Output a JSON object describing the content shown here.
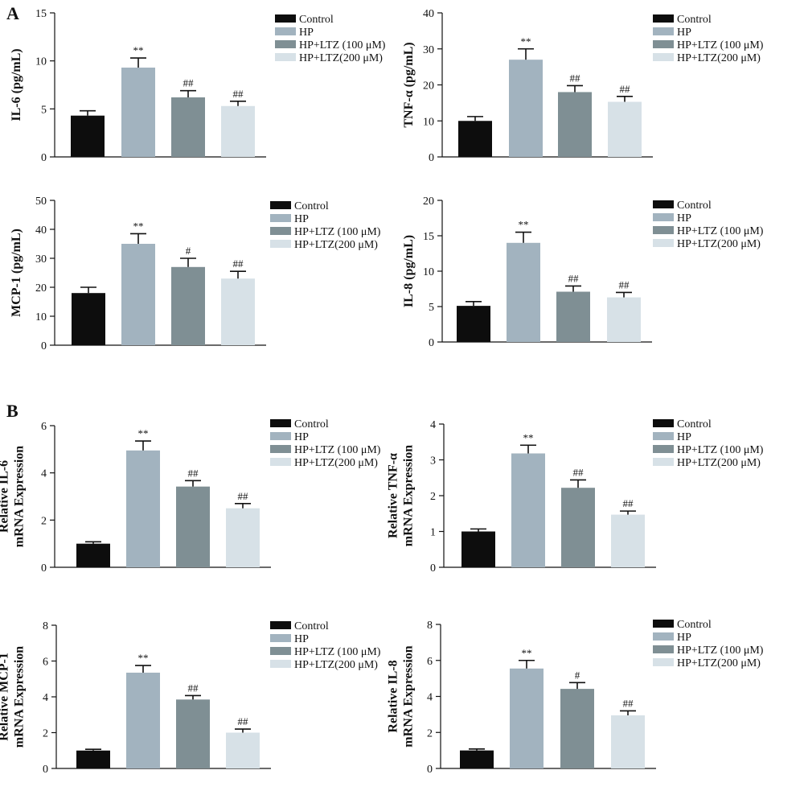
{
  "panel_letters": [
    "A",
    "B"
  ],
  "legend": [
    "Control",
    "HP",
    "HP+LTZ (100 μM)",
    "HP+LTZ(200 μM)"
  ],
  "colors": [
    "#0d0d0d",
    "#a2b3bf",
    "#7f8f94",
    "#d7e1e7"
  ],
  "chart_data": [
    {
      "type": "bar",
      "panel": "A",
      "ylabel": [
        "IL-6 (pg/mL)"
      ],
      "categories": [
        "Control",
        "HP",
        "HP+LTZ (100 μM)",
        "HP+LTZ(200 μM)"
      ],
      "values": [
        4.3,
        9.3,
        6.2,
        5.3
      ],
      "errors": [
        0.5,
        1.0,
        0.7,
        0.5
      ],
      "significance": [
        "",
        "**",
        "##",
        "##"
      ],
      "ylim": [
        0,
        15
      ],
      "yticks": [
        0,
        5,
        10,
        15
      ],
      "grid": false,
      "legend_position": "right"
    },
    {
      "type": "bar",
      "panel": "A",
      "ylabel": [
        "TNF-α (pg/mL)"
      ],
      "categories": [
        "Control",
        "HP",
        "HP+LTZ (100 μM)",
        "HP+LTZ(200 μM)"
      ],
      "values": [
        10,
        27,
        18,
        15.3
      ],
      "errors": [
        1.2,
        3.0,
        1.8,
        1.5
      ],
      "significance": [
        "",
        "**",
        "##",
        "##"
      ],
      "ylim": [
        0,
        40
      ],
      "yticks": [
        0,
        10,
        20,
        30,
        40
      ],
      "grid": false,
      "legend_position": "right"
    },
    {
      "type": "bar",
      "panel": "A",
      "ylabel": [
        "MCP-1 (pg/mL)"
      ],
      "categories": [
        "Control",
        "HP",
        "HP+LTZ (100 μM)",
        "HP+LTZ(200 μM)"
      ],
      "values": [
        18,
        35,
        27,
        23
      ],
      "errors": [
        2.0,
        3.5,
        3.0,
        2.5
      ],
      "significance": [
        "",
        "**",
        "#",
        "##"
      ],
      "ylim": [
        0,
        50
      ],
      "yticks": [
        0,
        10,
        20,
        30,
        40,
        50
      ],
      "grid": false,
      "legend_position": "right"
    },
    {
      "type": "bar",
      "panel": "A",
      "ylabel": [
        "IL-8 (pg/mL)"
      ],
      "categories": [
        "Control",
        "HP",
        "HP+LTZ (100 μM)",
        "HP+LTZ(200 μM)"
      ],
      "values": [
        5.1,
        14,
        7.1,
        6.3
      ],
      "errors": [
        0.6,
        1.5,
        0.8,
        0.7
      ],
      "significance": [
        "",
        "**",
        "##",
        "##"
      ],
      "ylim": [
        0,
        20
      ],
      "yticks": [
        0,
        5,
        10,
        15,
        20
      ],
      "grid": false,
      "legend_position": "right"
    },
    {
      "type": "bar",
      "panel": "B",
      "ylabel": [
        "Relative IL-6",
        "mRNA Expression"
      ],
      "categories": [
        "Control",
        "HP",
        "HP+LTZ (100 μM)",
        "HP+LTZ(200 μM)"
      ],
      "values": [
        1.0,
        4.95,
        3.42,
        2.5
      ],
      "errors": [
        0.08,
        0.4,
        0.25,
        0.2
      ],
      "significance": [
        "",
        "**",
        "##",
        "##"
      ],
      "ylim": [
        0,
        6
      ],
      "yticks": [
        0,
        2,
        4,
        6
      ],
      "grid": false,
      "legend_position": "right"
    },
    {
      "type": "bar",
      "panel": "B",
      "ylabel": [
        "Relative TNF-α",
        "mRNA Expression"
      ],
      "categories": [
        "Control",
        "HP",
        "HP+LTZ (100 μM)",
        "HP+LTZ(200 μM)"
      ],
      "values": [
        1.0,
        3.18,
        2.22,
        1.47
      ],
      "errors": [
        0.07,
        0.23,
        0.22,
        0.1
      ],
      "significance": [
        "",
        "**",
        "##",
        "##"
      ],
      "ylim": [
        0,
        4
      ],
      "yticks": [
        0,
        1,
        2,
        3,
        4
      ],
      "grid": false,
      "legend_position": "right"
    },
    {
      "type": "bar",
      "panel": "B",
      "ylabel": [
        "Relative MCP-1",
        "mRNA Expression"
      ],
      "categories": [
        "Control",
        "HP",
        "HP+LTZ (100 μM)",
        "HP+LTZ(200 μM)"
      ],
      "values": [
        1.0,
        5.35,
        3.85,
        2.0
      ],
      "errors": [
        0.07,
        0.4,
        0.22,
        0.2
      ],
      "significance": [
        "",
        "**",
        "##",
        "##"
      ],
      "ylim": [
        0,
        8
      ],
      "yticks": [
        0,
        2,
        4,
        6,
        8
      ],
      "grid": false,
      "legend_position": "right"
    },
    {
      "type": "bar",
      "panel": "B",
      "ylabel": [
        "Relative IL-8",
        "mRNA Expression"
      ],
      "categories": [
        "Control",
        "HP",
        "HP+LTZ (100 μM)",
        "HP+LTZ(200 μM)"
      ],
      "values": [
        1.0,
        5.55,
        4.42,
        2.95
      ],
      "errors": [
        0.08,
        0.45,
        0.35,
        0.25
      ],
      "significance": [
        "",
        "**",
        "#",
        "##"
      ],
      "ylim": [
        0,
        8
      ],
      "yticks": [
        0,
        2,
        4,
        6,
        8
      ],
      "grid": false,
      "legend_position": "right"
    }
  ]
}
